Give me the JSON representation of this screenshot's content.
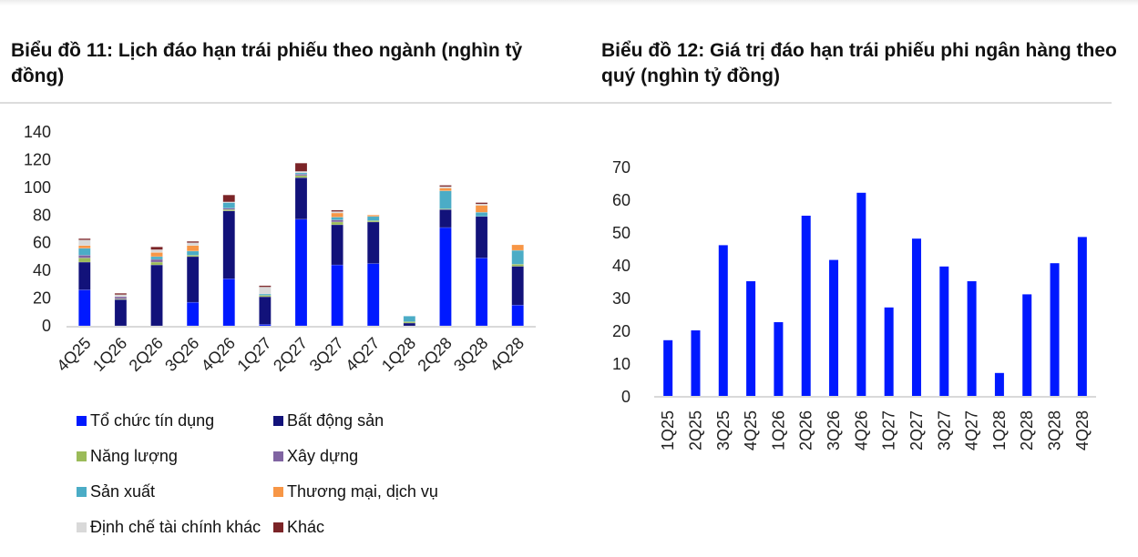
{
  "chart11": {
    "title": "Biểu đồ 11: Lịch đáo hạn trái phiếu theo ngành (nghìn tỷ đồng)"
  },
  "chart12": {
    "title": "Biểu đồ 12: Giá trị đáo hạn trái phiếu phi ngân hàng theo quý (nghìn tỷ đồng)"
  },
  "chart_data": [
    {
      "type": "bar",
      "stacked": true,
      "title": "Biểu đồ 11: Lịch đáo hạn trái phiếu theo ngành (nghìn tỷ đồng)",
      "xlabel": "",
      "ylabel": "",
      "ylim": [
        0,
        140
      ],
      "yticks": [
        0,
        20,
        40,
        60,
        80,
        100,
        120,
        140
      ],
      "grid": false,
      "legend_position": "bottom",
      "categories": [
        "4Q25",
        "1Q26",
        "2Q26",
        "3Q26",
        "4Q26",
        "1Q27",
        "2Q27",
        "3Q27",
        "4Q27",
        "1Q28",
        "2Q28",
        "3Q28",
        "4Q28"
      ],
      "series": [
        {
          "name": "Tổ chức tín dụng",
          "color": "#0019ff",
          "values": [
            26,
            0,
            0,
            17,
            34,
            1,
            77,
            44,
            45,
            0,
            71,
            49,
            15
          ]
        },
        {
          "name": "Bất động sản",
          "color": "#12127a",
          "values": [
            20,
            19,
            44,
            33,
            49,
            20,
            30,
            29,
            30,
            2,
            13,
            30,
            28
          ]
        },
        {
          "name": "Năng lượng",
          "color": "#9bbb59",
          "values": [
            3,
            0.5,
            2,
            1,
            1,
            1,
            1.5,
            2,
            1,
            1,
            0.5,
            0,
            1.5
          ]
        },
        {
          "name": "Xây dựng",
          "color": "#8064a2",
          "values": [
            2,
            1.5,
            2,
            0,
            1,
            0,
            1,
            1.5,
            0,
            0,
            0,
            0,
            0
          ]
        },
        {
          "name": "Sản xuất",
          "color": "#4bacc6",
          "values": [
            5,
            0,
            2,
            3,
            4,
            1,
            1,
            2,
            3,
            4,
            13,
            3,
            10
          ]
        },
        {
          "name": "Thương mại, dịch vụ",
          "color": "#f79646",
          "values": [
            2,
            0,
            3,
            4,
            0,
            0,
            0,
            3,
            1,
            0,
            2,
            5,
            4
          ]
        },
        {
          "name": "Định chế tài chính khác",
          "color": "#d9d9d9",
          "values": [
            4,
            1.5,
            2,
            2,
            0.5,
            5,
            1,
            1,
            0,
            0,
            1,
            1,
            0
          ]
        },
        {
          "name": "Khác",
          "color": "#7b2427",
          "values": [
            1,
            1,
            2,
            1,
            5,
            1,
            6,
            1,
            0,
            0,
            1,
            1,
            0
          ]
        }
      ]
    },
    {
      "type": "bar",
      "title": "Biểu đồ 12: Giá trị đáo hạn trái phiếu phi ngân hàng theo quý (nghìn tỷ đồng)",
      "xlabel": "",
      "ylabel": "",
      "ylim": [
        0,
        70
      ],
      "yticks": [
        0,
        10,
        20,
        30,
        40,
        50,
        60,
        70
      ],
      "grid": false,
      "color": "#0019ff",
      "categories": [
        "1Q25",
        "2Q25",
        "3Q25",
        "4Q25",
        "1Q26",
        "2Q26",
        "3Q26",
        "4Q26",
        "1Q27",
        "2Q27",
        "3Q27",
        "4Q27",
        "1Q28",
        "2Q28",
        "3Q28",
        "4Q28"
      ],
      "values": [
        17,
        20,
        46,
        35,
        22.5,
        55,
        41.5,
        62,
        27,
        48,
        39.5,
        35,
        7,
        31,
        40.5,
        48.5
      ]
    }
  ]
}
